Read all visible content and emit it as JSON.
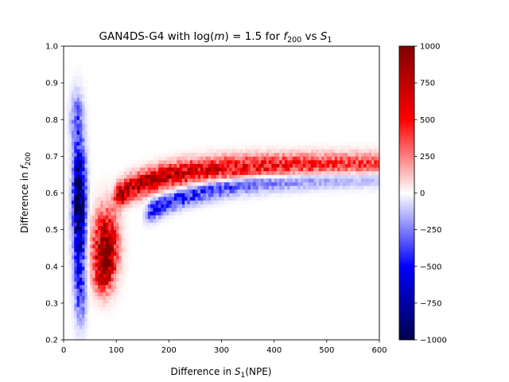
{
  "chart_data": {
    "type": "heatmap",
    "title_parts": {
      "prefix": "GAN4DS-G4 with log(",
      "m": "m",
      "mid": ") = 1.5 for ",
      "f": "f",
      "fsub": "200",
      "vs": " vs ",
      "s": "S",
      "ssub": "1"
    },
    "xlabel_parts": {
      "prefix": "Difference in ",
      "s": "S",
      "sub": "1",
      "suffix": "(NPE)"
    },
    "ylabel_parts": {
      "prefix": "Difference in ",
      "f": "f",
      "sub": "200"
    },
    "x_range": [
      0,
      600
    ],
    "y_range": [
      0.2,
      1.0
    ],
    "x_ticks": [
      0,
      100,
      200,
      300,
      400,
      500,
      600
    ],
    "x_tick_labels": [
      "0",
      "100",
      "200",
      "300",
      "400",
      "500",
      "600"
    ],
    "y_ticks": [
      0.2,
      0.3,
      0.4,
      0.5,
      0.6,
      0.7,
      0.8,
      0.9,
      1.0
    ],
    "y_tick_labels": [
      "0.2",
      "0.3",
      "0.4",
      "0.5",
      "0.6",
      "0.7",
      "0.8",
      "0.9",
      "1.0"
    ],
    "colorbar": {
      "colormap": "seismic",
      "range": [
        -1000,
        1000
      ],
      "ticks": [
        -1000,
        -750,
        -500,
        -250,
        0,
        250,
        500,
        750,
        1000
      ],
      "tick_labels": [
        "−1000",
        "−750",
        "−500",
        "−250",
        "0",
        "250",
        "500",
        "750",
        "1000"
      ]
    },
    "bins": {
      "nx": 120,
      "ny": 80
    },
    "features": [
      {
        "name": "low-S1 negative column",
        "x": 30,
        "y": 0.56,
        "sx": 8,
        "sy": 0.11,
        "amp": -1050
      },
      {
        "name": "low-S1 negative column core",
        "x": 28,
        "y": 0.6,
        "sx": 5,
        "sy": 0.06,
        "amp": -300
      },
      {
        "name": "low-S1 negative tail",
        "x": 32,
        "y": 0.33,
        "sx": 7,
        "sy": 0.06,
        "amp": -350
      },
      {
        "name": "low-S1 negative upper tail",
        "x": 25,
        "y": 0.8,
        "sx": 8,
        "sy": 0.05,
        "amp": -300
      },
      {
        "name": "positive blob",
        "x": 80,
        "y": 0.46,
        "sx": 15,
        "sy": 0.06,
        "amp": 950
      },
      {
        "name": "positive blob lower",
        "x": 75,
        "y": 0.39,
        "sx": 12,
        "sy": 0.04,
        "amp": 600
      }
    ],
    "bands": [
      {
        "name": "positive upper band",
        "x_start": 110,
        "y_at_start": 0.6,
        "y_end": 0.675,
        "x_scale": 90,
        "width": 0.022,
        "amp_start": 850,
        "amp_end": 300,
        "decay": 320
      },
      {
        "name": "negative lower band",
        "x_start": 170,
        "y_at_start": 0.555,
        "y_end": 0.65,
        "x_scale": 130,
        "width": 0.018,
        "amp_start": -520,
        "amp_end": -150,
        "decay": 300
      }
    ]
  }
}
